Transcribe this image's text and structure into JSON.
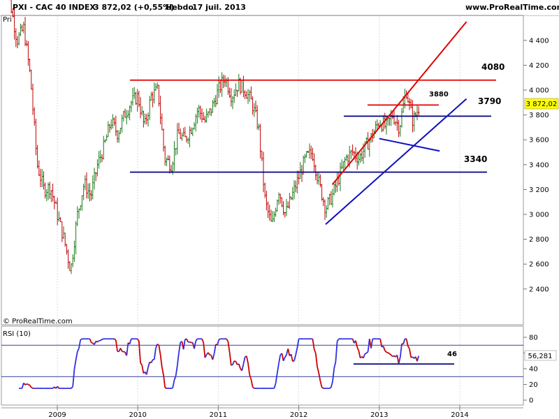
{
  "header": {
    "title": "PXI - CAC 40 INDEX",
    "quote": "3 872,02 (+0,55%)",
    "period": "Hebdo",
    "date": "17 juil. 2013",
    "site": "www.ProRealTime.com"
  },
  "watermark": "© ProRealTime.com",
  "price_panel_tag": "Pri",
  "last_price_label": "3 872,02",
  "rsi_last_label": "56,281",
  "colors": {
    "up_bar": "#1a7a1a",
    "down_bar": "#c00000",
    "support_line": "#000080",
    "resistance_line": "#e00000",
    "trend_line": "#1010c0",
    "rsi_up": "#3030e0",
    "rsi_down": "#cc0000",
    "price_tag_bg": "#ffff00"
  },
  "chart_data": [
    {
      "type": "ohlc",
      "title": "PXI - CAC 40 INDEX",
      "period": "weekly",
      "x_ticks": [
        "2009",
        "2010",
        "2011",
        "2012",
        "2013",
        "2014"
      ],
      "y_ticks": [
        2400,
        2600,
        2800,
        3000,
        3200,
        3400,
        3600,
        3800,
        4000,
        4200,
        4400
      ],
      "y_tick_labels": [
        "2 400",
        "2 600",
        "2 800",
        "3 000",
        "3 200",
        "3 400",
        "3 600",
        "3 800",
        "4 000",
        "4 200",
        "4 400"
      ],
      "ylim": [
        2290,
        4600
      ],
      "last_close": 3872.02,
      "close_path": [
        [
          "2008-05",
          5150
        ],
        [
          "2008-06",
          4700
        ],
        [
          "2008-07",
          4400
        ],
        [
          "2008-08",
          4500
        ],
        [
          "2008-09",
          4100
        ],
        [
          "2008-10",
          3400
        ],
        [
          "2008-11",
          3200
        ],
        [
          "2008-12",
          3220
        ],
        [
          "2009-01",
          3000
        ],
        [
          "2009-02",
          2800
        ],
        [
          "2009-03",
          2550
        ],
        [
          "2009-04",
          3000
        ],
        [
          "2009-05",
          3250
        ],
        [
          "2009-06",
          3150
        ],
        [
          "2009-07",
          3400
        ],
        [
          "2009-08",
          3550
        ],
        [
          "2009-09",
          3750
        ],
        [
          "2009-10",
          3650
        ],
        [
          "2009-11",
          3800
        ],
        [
          "2009-12",
          3900
        ],
        [
          "2010-01",
          3950
        ],
        [
          "2010-02",
          3700
        ],
        [
          "2010-03",
          3950
        ],
        [
          "2010-04",
          4000
        ],
        [
          "2010-05",
          3450
        ],
        [
          "2010-06",
          3400
        ],
        [
          "2010-07",
          3650
        ],
        [
          "2010-08",
          3600
        ],
        [
          "2010-09",
          3700
        ],
        [
          "2010-10",
          3850
        ],
        [
          "2010-11",
          3750
        ],
        [
          "2010-12",
          3850
        ],
        [
          "2011-01",
          4000
        ],
        [
          "2011-02",
          4100
        ],
        [
          "2011-03",
          3950
        ],
        [
          "2011-04",
          4050
        ],
        [
          "2011-05",
          4000
        ],
        [
          "2011-06",
          3900
        ],
        [
          "2011-07",
          3700
        ],
        [
          "2011-08",
          3100
        ],
        [
          "2011-09",
          2900
        ],
        [
          "2011-10",
          3200
        ],
        [
          "2011-11",
          3000
        ],
        [
          "2011-12",
          3150
        ],
        [
          "2012-01",
          3300
        ],
        [
          "2012-02",
          3450
        ],
        [
          "2012-03",
          3500
        ],
        [
          "2012-04",
          3250
        ],
        [
          "2012-05",
          3050
        ],
        [
          "2012-06",
          3150
        ],
        [
          "2012-07",
          3300
        ],
        [
          "2012-08",
          3450
        ],
        [
          "2012-09",
          3500
        ],
        [
          "2012-10",
          3450
        ],
        [
          "2012-11",
          3550
        ],
        [
          "2012-12",
          3640
        ],
        [
          "2013-01",
          3750
        ],
        [
          "2013-02",
          3700
        ],
        [
          "2013-03",
          3800
        ],
        [
          "2013-04",
          3700
        ],
        [
          "2013-05",
          4000
        ],
        [
          "2013-06",
          3750
        ],
        [
          "2013-07",
          3872
        ]
      ],
      "levels": [
        {
          "label": "4080",
          "value": 4080,
          "color": "red"
        },
        {
          "label": "3880",
          "value": 3880,
          "color": "red"
        },
        {
          "label": "3790",
          "value": 3790,
          "color": "navy"
        },
        {
          "label": "3340",
          "value": 3340,
          "color": "navy"
        }
      ],
      "trend_lines": [
        {
          "color": "red",
          "from": [
            "2012-06",
            3240
          ],
          "to": [
            "2014-02",
            4550
          ]
        },
        {
          "color": "blue",
          "from": [
            "2012-05",
            2920
          ],
          "to": [
            "2014-02",
            3930
          ]
        },
        {
          "color": "blue",
          "from": [
            "2013-01",
            3610
          ],
          "to": [
            "2013-10",
            3510
          ]
        }
      ]
    },
    {
      "type": "line",
      "title": "RSI (10)",
      "y_ticks": [
        0,
        20,
        40,
        60,
        80
      ],
      "ylim": [
        0,
        85
      ],
      "reference_lines": [
        30,
        70
      ],
      "annotation": {
        "label": "46",
        "value": 46
      },
      "last_value": 56.281
    }
  ]
}
